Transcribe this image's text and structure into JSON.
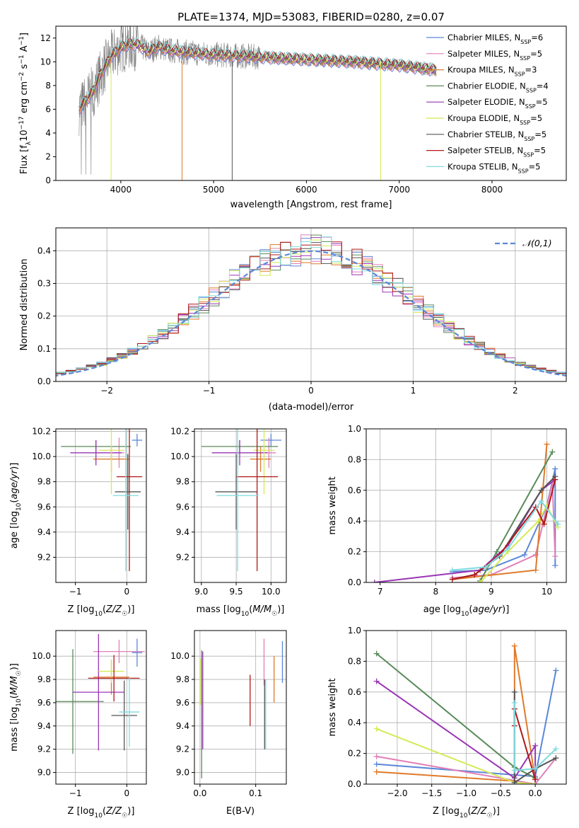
{
  "title": "PLATE=1374, MJD=53083, FIBERID=0280, z=0.07",
  "colors": {
    "Chabrier MILES": "#5b87d8",
    "Salpeter MILES": "#e07fb8",
    "Kroupa MILES": "#e07a2a",
    "Chabrier ELODIE": "#5a8a5a",
    "Salpeter ELODIE": "#9a35b5",
    "Kroupa ELODIE": "#d4ea55",
    "Chabrier STELIB": "#555555",
    "Salpeter STELIB": "#b01818",
    "Kroupa STELIB": "#7fdbe0",
    "data": "#808080",
    "normal": "#5b87d8"
  },
  "chart_data": [
    {
      "type": "line",
      "panel": "spectrum",
      "title": "PLATE=1374, MJD=53083, FIBERID=0280, z=0.07",
      "xlabel": "wavelength [Angstrom, rest frame]",
      "ylabel_parts": [
        "Flux [f",
        "λ",
        "10",
        "−17",
        " erg cm",
        "−2",
        " s",
        "−1",
        " A",
        "−1",
        "]"
      ],
      "xlim": [
        3300,
        8800
      ],
      "ylim": [
        0,
        13
      ],
      "xticks": [
        4000,
        5000,
        6000,
        7000,
        8000
      ],
      "yticks": [
        0,
        2,
        4,
        6,
        8,
        10,
        12
      ],
      "legend_position": "top-right",
      "series": [
        {
          "name": "Chabrier MILES",
          "nssp": "6"
        },
        {
          "name": "Salpeter MILES",
          "nssp": "5"
        },
        {
          "name": "Kroupa MILES",
          "nssp": "3"
        },
        {
          "name": "Chabrier ELODIE",
          "nssp": "4"
        },
        {
          "name": "Salpeter ELODIE",
          "nssp": "5"
        },
        {
          "name": "Kroupa ELODIE",
          "nssp": "5"
        },
        {
          "name": "Chabrier STELIB",
          "nssp": "5"
        },
        {
          "name": "Salpeter STELIB",
          "nssp": "5"
        },
        {
          "name": "Kroupa STELIB",
          "nssp": "5"
        }
      ],
      "continuum": {
        "x": [
          3550,
          3600,
          3700,
          3800,
          3900,
          4000,
          4100,
          4200,
          4300,
          4400,
          4500,
          4700,
          5000,
          5500,
          6000,
          6500,
          7000,
          7200,
          7400,
          7600,
          7800,
          8000,
          8200,
          8400
        ],
        "y": [
          6.0,
          6.5,
          7.5,
          9.2,
          10.5,
          11.2,
          11.5,
          11.4,
          10.8,
          11.3,
          11.0,
          10.8,
          10.6,
          10.4,
          10.2,
          10.0,
          9.7,
          9.5,
          9.3,
          9.2,
          9.0,
          8.8,
          8.4,
          8.0
        ]
      }
    },
    {
      "type": "histogram",
      "panel": "residuals",
      "xlabel": "(data-model)/error",
      "ylabel": "Normed distribution",
      "xlim": [
        -2.5,
        2.5
      ],
      "ylim": [
        0,
        0.47
      ],
      "xticks": [
        -2,
        -1,
        0,
        1,
        2
      ],
      "yticks": [
        0.0,
        0.1,
        0.2,
        0.3,
        0.4
      ],
      "bin_width": 0.1,
      "normal_label": "𝒩(0,1)",
      "legend_position": "top-right"
    },
    {
      "type": "scatter",
      "panel": "age_vs_Z",
      "xlabel": "Z [log10(Z/Z☉)]",
      "ylabel": "age [log10(age/yr)]",
      "xlim": [
        -1.38,
        0.38
      ],
      "ylim": [
        9.0,
        10.22
      ],
      "xticks": [
        -1,
        0
      ],
      "yticks": [
        9.2,
        9.4,
        9.6,
        9.8,
        10.0,
        10.2
      ],
      "points": [
        {
          "series": "Chabrier MILES",
          "x": 0.2,
          "xerr": 0.1,
          "y": 10.13,
          "yerr": 0.05
        },
        {
          "series": "Salpeter MILES",
          "x": -0.15,
          "xerr": 0.1,
          "y": 10.03,
          "yerr": 0.12
        },
        {
          "series": "Kroupa MILES",
          "x": -0.3,
          "xerr": 0.35,
          "y": 9.98,
          "yerr": 0.1
        },
        {
          "series": "Chabrier ELODIE",
          "x": -0.6,
          "xerr": 0.68,
          "y": 10.08,
          "yerr": 0.05
        },
        {
          "series": "Salpeter ELODIE",
          "x": -0.6,
          "xerr": 0.5,
          "y": 10.03,
          "yerr": 0.1
        },
        {
          "series": "Kroupa ELODIE",
          "x": -0.3,
          "xerr": 0.25,
          "y": 10.05,
          "yerr": 0.35
        },
        {
          "series": "Chabrier STELIB",
          "x": 0.02,
          "xerr": 0.25,
          "y": 9.72,
          "yerr": 0.3
        },
        {
          "series": "Salpeter STELIB",
          "x": 0.05,
          "xerr": 0.25,
          "y": 9.84,
          "yerr": 0.75
        },
        {
          "series": "Kroupa STELIB",
          "x": -0.02,
          "xerr": 0.25,
          "y": 9.69,
          "yerr": 0.6
        }
      ]
    },
    {
      "type": "scatter",
      "panel": "age_vs_mass",
      "xlabel": "mass [log10(M/M☉)]",
      "ylabel": "",
      "xlim": [
        8.9,
        10.22
      ],
      "ylim": [
        9.0,
        10.22
      ],
      "xticks": [
        9.0,
        9.5,
        10.0
      ],
      "yticks": [
        9.2,
        9.4,
        9.6,
        9.8,
        10.0,
        10.2
      ],
      "points": [
        {
          "series": "Chabrier MILES",
          "x": 10.0,
          "xerr": 0.15,
          "y": 10.13,
          "yerr": 0.05
        },
        {
          "series": "Salpeter MILES",
          "x": 9.97,
          "xerr": 0.1,
          "y": 10.03,
          "yerr": 0.12
        },
        {
          "series": "Kroupa MILES",
          "x": 9.85,
          "xerr": 0.15,
          "y": 9.98,
          "yerr": 0.1
        },
        {
          "series": "Chabrier ELODIE",
          "x": 9.55,
          "xerr": 0.55,
          "y": 10.08,
          "yerr": 0.05
        },
        {
          "series": "Salpeter ELODIE",
          "x": 9.55,
          "xerr": 0.4,
          "y": 10.03,
          "yerr": 0.1
        },
        {
          "series": "Kroupa ELODIE",
          "x": 9.9,
          "xerr": 0.15,
          "y": 10.05,
          "yerr": 0.35
        },
        {
          "series": "Chabrier STELIB",
          "x": 9.5,
          "xerr": 0.3,
          "y": 9.72,
          "yerr": 0.3
        },
        {
          "series": "Salpeter STELIB",
          "x": 9.8,
          "xerr": 0.3,
          "y": 9.84,
          "yerr": 0.75
        },
        {
          "series": "Kroupa STELIB",
          "x": 9.52,
          "xerr": 0.3,
          "y": 9.69,
          "yerr": 0.6
        }
      ]
    },
    {
      "type": "line",
      "panel": "mass_weight_vs_age",
      "xlabel": "age [log10(age/yr)]",
      "ylabel": "mass weight",
      "xlim": [
        6.75,
        10.35
      ],
      "ylim": [
        0,
        1.0
      ],
      "xticks": [
        7,
        8,
        9,
        10
      ],
      "yticks": [
        0.0,
        0.2,
        0.4,
        0.6,
        0.8,
        1.0
      ],
      "series": [
        {
          "name": "Chabrier MILES",
          "x": [
            8.3,
            8.9,
            9.6,
            10.0,
            10.15,
            10.15
          ],
          "y": [
            0.07,
            0.08,
            0.18,
            0.5,
            0.74,
            0.11
          ]
        },
        {
          "name": "Salpeter MILES",
          "x": [
            8.3,
            9.0,
            9.8,
            10.1,
            10.15
          ],
          "y": [
            0.03,
            0.05,
            0.18,
            0.65,
            0.17
          ]
        },
        {
          "name": "Kroupa MILES",
          "x": [
            8.3,
            9.8,
            10.0
          ],
          "y": [
            0.02,
            0.08,
            0.9
          ]
        },
        {
          "name": "Chabrier ELODIE",
          "x": [
            8.8,
            9.1,
            10.1
          ],
          "y": [
            0.01,
            0.2,
            0.85
          ]
        },
        {
          "name": "Salpeter ELODIE",
          "x": [
            6.9,
            8.8,
            9.3,
            9.9,
            10.15
          ],
          "y": [
            0.0,
            0.08,
            0.24,
            0.6,
            0.67
          ]
        },
        {
          "name": "Kroupa ELODIE",
          "x": [
            8.8,
            9.3,
            9.85,
            10.0,
            10.2
          ],
          "y": [
            0.0,
            0.2,
            0.4,
            0.5,
            0.36
          ]
        },
        {
          "name": "Chabrier STELIB",
          "x": [
            8.3,
            8.7,
            9.15,
            9.9,
            10.15
          ],
          "y": [
            0.02,
            0.05,
            0.17,
            0.6,
            0.69
          ]
        },
        {
          "name": "Salpeter STELIB",
          "x": [
            8.3,
            8.7,
            9.15,
            9.8,
            9.95,
            10.15
          ],
          "y": [
            0.02,
            0.05,
            0.18,
            0.49,
            0.38,
            0.67
          ]
        },
        {
          "name": "Kroupa STELIB",
          "x": [
            8.3,
            8.9,
            9.3,
            9.9,
            10.2
          ],
          "y": [
            0.08,
            0.1,
            0.22,
            0.53,
            0.38
          ]
        }
      ]
    },
    {
      "type": "scatter",
      "panel": "mass_vs_Z",
      "xlabel": "Z [log10(Z/Z☉)]",
      "ylabel": "mass [log10(M/M☉)]",
      "xlim": [
        -1.38,
        0.38
      ],
      "ylim": [
        8.9,
        10.22
      ],
      "xticks": [
        -1,
        0
      ],
      "yticks": [
        9.0,
        9.2,
        9.4,
        9.6,
        9.8,
        10.0
      ],
      "points": [
        {
          "series": "Chabrier MILES",
          "x": 0.2,
          "xerr": 0.1,
          "y": 10.03,
          "yerr": 0.12
        },
        {
          "series": "Salpeter MILES",
          "x": -0.15,
          "xerr": 0.5,
          "y": 10.04,
          "yerr": 0.1
        },
        {
          "series": "Kroupa MILES",
          "x": -0.3,
          "xerr": 0.35,
          "y": 9.82,
          "yerr": 0.15
        },
        {
          "series": "Chabrier ELODIE",
          "x": -1.05,
          "xerr": 0.6,
          "y": 9.61,
          "yerr": 0.45
        },
        {
          "series": "Salpeter ELODIE",
          "x": -0.55,
          "xerr": 0.5,
          "y": 9.69,
          "yerr": 0.5
        },
        {
          "series": "Kroupa ELODIE",
          "x": -0.3,
          "xerr": 0.25,
          "y": 9.87,
          "yerr": 0.1
        },
        {
          "series": "Chabrier STELIB",
          "x": -0.05,
          "xerr": 0.25,
          "y": 9.49,
          "yerr": 0.3
        },
        {
          "series": "Salpeter STELIB",
          "x": -0.25,
          "xerr": 0.5,
          "y": 9.81,
          "yerr": 0.2
        },
        {
          "series": "Kroupa STELIB",
          "x": 0.05,
          "xerr": 0.2,
          "y": 9.52,
          "yerr": 0.3
        }
      ]
    },
    {
      "type": "scatter",
      "panel": "mass_vs_ebv",
      "xlabel": "E(B-V)",
      "ylabel": "",
      "xlim": [
        -0.01,
        0.155
      ],
      "ylim": [
        8.9,
        10.22
      ],
      "xticks": [
        0.0,
        0.1
      ],
      "yticks": [
        9.0,
        9.2,
        9.4,
        9.6,
        9.8,
        10.0
      ],
      "points": [
        {
          "series": "Chabrier MILES",
          "x": 0.148,
          "y": 9.95,
          "yerr": 0.18
        },
        {
          "series": "Salpeter MILES",
          "x": 0.115,
          "y": 9.95,
          "yerr": 0.2
        },
        {
          "series": "Kroupa MILES",
          "x": 0.133,
          "y": 9.8,
          "yerr": 0.2
        },
        {
          "series": "Chabrier ELODIE",
          "x": 0.003,
          "y": 9.5,
          "yerr": 0.55
        },
        {
          "series": "Salpeter ELODIE",
          "x": 0.005,
          "y": 9.62,
          "yerr": 0.42
        },
        {
          "series": "Kroupa ELODIE",
          "x": 0.001,
          "y": 9.78,
          "yerr": 0.2
        },
        {
          "series": "Chabrier STELIB",
          "x": 0.116,
          "y": 9.5,
          "yerr": 0.3
        },
        {
          "series": "Salpeter STELIB",
          "x": 0.09,
          "y": 9.62,
          "yerr": 0.22
        },
        {
          "series": "Kroupa STELIB",
          "x": 0.118,
          "y": 9.5,
          "yerr": 0.3
        }
      ]
    },
    {
      "type": "line",
      "panel": "mass_weight_vs_Z",
      "xlabel": "Z [log10(Z/Z☉)]",
      "ylabel": "mass weight",
      "xlim": [
        -2.45,
        0.45
      ],
      "ylim": [
        0,
        1.0
      ],
      "xticks": [
        -2.0,
        -1.5,
        -1.0,
        -0.5,
        0.0
      ],
      "yticks": [
        0.0,
        0.2,
        0.4,
        0.6,
        0.8,
        1.0
      ],
      "series": [
        {
          "name": "Chabrier MILES",
          "x": [
            -2.3,
            0.0,
            0.3
          ],
          "y": [
            0.13,
            0.05,
            0.74
          ]
        },
        {
          "name": "Salpeter MILES",
          "x": [
            -2.3,
            0.0,
            0.3
          ],
          "y": [
            0.18,
            0.0,
            0.17
          ]
        },
        {
          "name": "Kroupa MILES",
          "x": [
            -2.3,
            -0.3,
            -0.3,
            0.0
          ],
          "y": [
            0.08,
            0.02,
            0.9,
            0.03
          ]
        },
        {
          "name": "Chabrier ELODIE",
          "x": [
            -2.3,
            -0.3,
            0.0
          ],
          "y": [
            0.85,
            0.11,
            0.04
          ]
        },
        {
          "name": "Salpeter ELODIE",
          "x": [
            -2.3,
            -0.3,
            0.0,
            0.0
          ],
          "y": [
            0.67,
            0.04,
            0.25,
            0.0
          ]
        },
        {
          "name": "Kroupa ELODIE",
          "x": [
            -2.3,
            -0.3,
            0.0
          ],
          "y": [
            0.36,
            0.01,
            0.0
          ]
        },
        {
          "name": "Chabrier STELIB",
          "x": [
            -0.3,
            -0.3,
            0.0,
            0.3
          ],
          "y": [
            0.6,
            0.01,
            0.1,
            0.17
          ]
        },
        {
          "name": "Salpeter STELIB",
          "x": [
            -0.3,
            -0.3,
            0.0
          ],
          "y": [
            0.38,
            0.49,
            0.03
          ]
        },
        {
          "name": "Kroupa STELIB",
          "x": [
            -0.3,
            -0.3,
            0.0,
            0.3
          ],
          "y": [
            0.53,
            0.09,
            0.1,
            0.23
          ]
        }
      ]
    }
  ]
}
